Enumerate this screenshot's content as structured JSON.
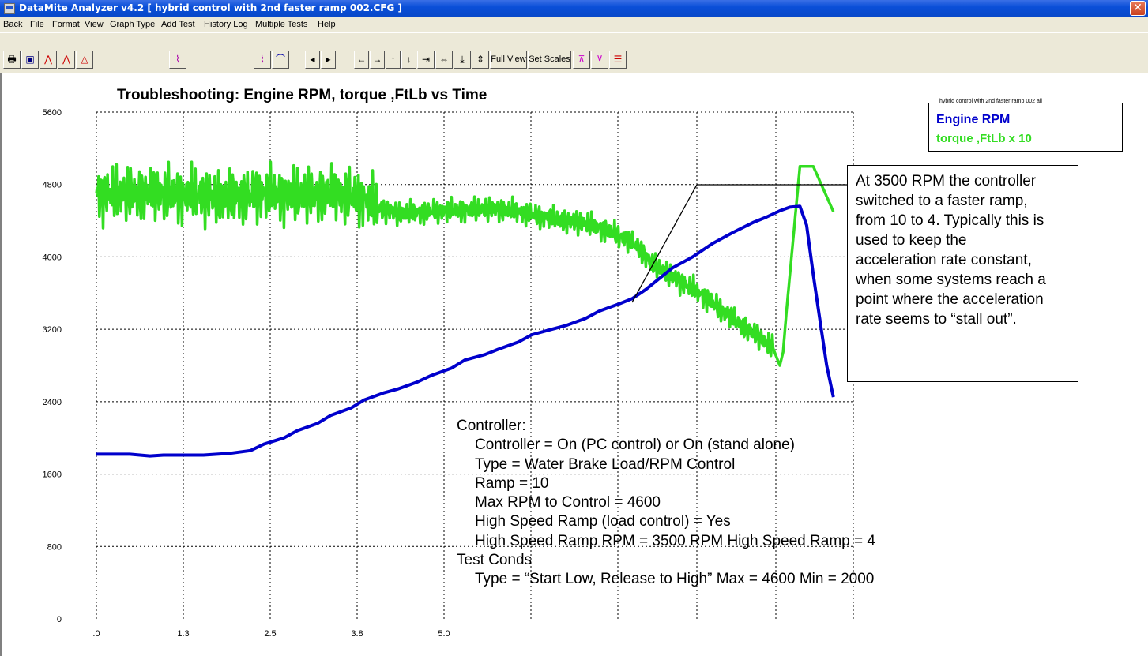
{
  "window": {
    "title": "DataMite Analyzer v4.2  [ hybrid control with 2nd faster ramp 002.CFG ]",
    "close_glyph": "✕"
  },
  "menu": [
    "Back",
    "File",
    "Format",
    "View",
    "Graph Type",
    "Add Test",
    "History Log",
    "Multiple Tests",
    "Help"
  ],
  "toolbar": {
    "full_view": "Full View",
    "set_scales": "Set Scales"
  },
  "chart_data": {
    "type": "line",
    "title": "Troubleshooting: Engine RPM, torque ,FtLb vs Time",
    "xlabel": "",
    "ylabel": "",
    "ylim": [
      0,
      5600
    ],
    "y_ticks": [
      "5600",
      "4800",
      "4000",
      "3200",
      "2400",
      "1600",
      "800",
      "0"
    ],
    "x_ticks": [
      ".0",
      "1.3",
      "2.5",
      "3.8",
      "5.0"
    ],
    "grid": true,
    "series": [
      {
        "name": "Engine RPM",
        "color": "#0000cc",
        "x": [
          0.0,
          0.5,
          0.8,
          1.0,
          1.3,
          1.6,
          2.0,
          2.3,
          2.5,
          2.8,
          3.0,
          3.3,
          3.5,
          3.8,
          4.0,
          4.3,
          4.5,
          4.8,
          5.0,
          5.3,
          5.5,
          5.8,
          6.0,
          6.3,
          6.5,
          6.8,
          7.0,
          7.3,
          7.5,
          7.8,
          8.0,
          8.2,
          8.4,
          8.6,
          8.9,
          9.2,
          9.5,
          9.8,
          10.0,
          10.2,
          10.35,
          10.5,
          10.6,
          10.7,
          10.8,
          10.9,
          11.0
        ],
        "values": [
          1820,
          1820,
          1800,
          1810,
          1810,
          1810,
          1830,
          1860,
          1930,
          2000,
          2080,
          2160,
          2250,
          2330,
          2420,
          2500,
          2540,
          2620,
          2690,
          2770,
          2860,
          2920,
          2980,
          3060,
          3140,
          3200,
          3240,
          3320,
          3400,
          3480,
          3540,
          3640,
          3760,
          3880,
          4000,
          4150,
          4270,
          4380,
          4440,
          4510,
          4550,
          4560,
          4350,
          3800,
          3300,
          2800,
          2450
        ]
      },
      {
        "name": "torque ,FtLb x 10",
        "color": "#33dd22",
        "x": [
          0.0,
          0.5,
          1.0,
          1.5,
          2.0,
          2.5,
          3.0,
          3.5,
          4.0,
          4.2,
          4.5,
          5.0,
          5.5,
          6.0,
          6.3,
          6.6,
          7.0,
          7.3,
          7.6,
          7.9,
          8.1,
          8.3,
          8.6,
          9.0,
          9.3,
          9.6,
          9.9,
          10.1,
          10.2,
          10.25,
          10.3,
          10.4,
          10.5,
          10.7,
          11.0
        ],
        "values": [
          4700,
          4700,
          4700,
          4680,
          4650,
          4700,
          4680,
          4700,
          4650,
          4540,
          4480,
          4500,
          4520,
          4530,
          4500,
          4450,
          4400,
          4370,
          4300,
          4200,
          4100,
          3920,
          3780,
          3600,
          3430,
          3260,
          3110,
          2990,
          2800,
          2950,
          3400,
          4200,
          5000,
          5000,
          4500
        ]
      }
    ]
  },
  "legend": {
    "header": "hybrid control with 2nd faster ramp 002  all",
    "entries": [
      "Engine RPM",
      "torque ,FtLb x 10"
    ]
  },
  "annotation_note": [
    "At 3500 RPM the controller",
    "switched to a faster ramp,",
    "from 10 to 4.  Typically this is",
    "used to keep the",
    "acceleration rate constant,",
    "when some systems reach a",
    "point where the acceleration",
    "rate seems to “stall out”."
  ],
  "settings_text": {
    "controller_header": "Controller:",
    "controller_lines": [
      "Controller = On (PC control) or On (stand alone)",
      "Type = Water Brake Load/RPM Control",
      "Ramp = 10",
      "Max RPM to Control = 4600",
      "High Speed Ramp (load control) = Yes",
      "High Speed Ramp RPM = 3500 RPM  High Speed Ramp = 4"
    ],
    "test_header": "Test Conds",
    "test_lines": [
      "Type = “Start Low, Release to High”  Max = 4600  Min = 2000"
    ]
  }
}
